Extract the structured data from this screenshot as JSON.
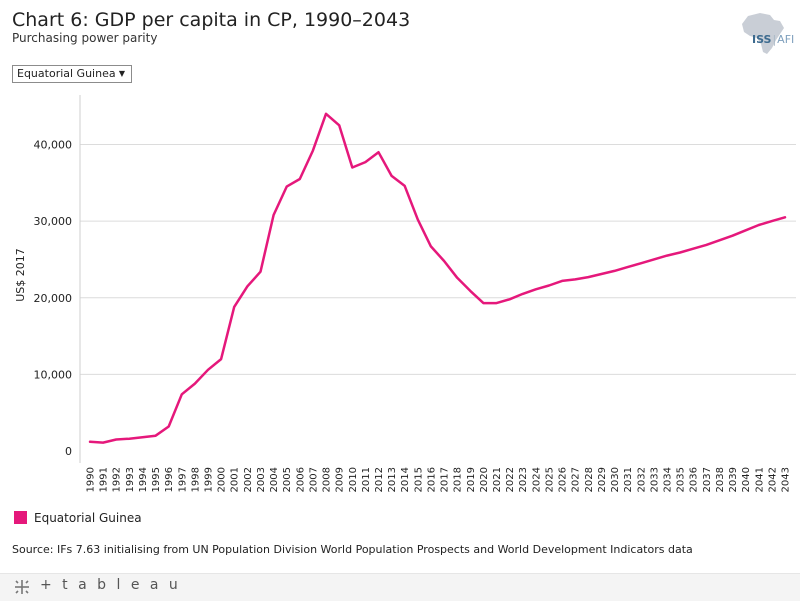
{
  "header": {
    "title": "Chart 6: GDP per capita in CP, 1990–2043",
    "subtitle": "Purchasing power parity"
  },
  "logo": {
    "brand": "ISS",
    "sep": "|",
    "afi": "AFI"
  },
  "filter": {
    "selected": "Equatorial Guinea"
  },
  "chart_data": {
    "type": "line",
    "title": "Chart 6: GDP per capita in CP, 1990–2043",
    "subtitle": "Purchasing power parity",
    "xlabel": "",
    "ylabel": "US$ 2017",
    "ylim": [
      0,
      45000
    ],
    "yticks": [
      0,
      10000,
      20000,
      30000,
      40000
    ],
    "ytick_labels": [
      "0",
      "10,000",
      "20,000",
      "30,000",
      "40,000"
    ],
    "grid": true,
    "legend_position": "bottom-left",
    "x": [
      1990,
      1991,
      1992,
      1993,
      1994,
      1995,
      1996,
      1997,
      1998,
      1999,
      2000,
      2001,
      2002,
      2003,
      2004,
      2005,
      2006,
      2007,
      2008,
      2009,
      2010,
      2011,
      2012,
      2013,
      2014,
      2015,
      2016,
      2017,
      2018,
      2019,
      2020,
      2021,
      2022,
      2023,
      2024,
      2025,
      2026,
      2027,
      2028,
      2029,
      2030,
      2031,
      2032,
      2033,
      2034,
      2035,
      2036,
      2037,
      2038,
      2039,
      2040,
      2041,
      2042,
      2043
    ],
    "series": [
      {
        "name": "Equatorial Guinea",
        "color": "#e5187b",
        "values": [
          1200,
          1100,
          1500,
          1600,
          1800,
          2000,
          3200,
          7400,
          8800,
          10600,
          12000,
          18800,
          21500,
          23400,
          30800,
          34500,
          35500,
          39200,
          44000,
          42500,
          37000,
          37700,
          39000,
          35900,
          34600,
          30200,
          26700,
          24800,
          22600,
          20900,
          19300,
          19300,
          19800,
          20500,
          21100,
          21600,
          22200,
          22400,
          22700,
          23100,
          23500,
          24000,
          24500,
          25000,
          25500,
          25900,
          26400,
          26900,
          27500,
          28100,
          28800,
          29500,
          30000,
          30500
        ]
      }
    ]
  },
  "legend": {
    "items": [
      {
        "label": "Equatorial Guinea"
      }
    ]
  },
  "source": "Source: IFs 7.63 initialising from UN Population Division World Population Prospects and World Development Indicators data",
  "footer": {
    "brand": "+ t a b l e a u"
  }
}
